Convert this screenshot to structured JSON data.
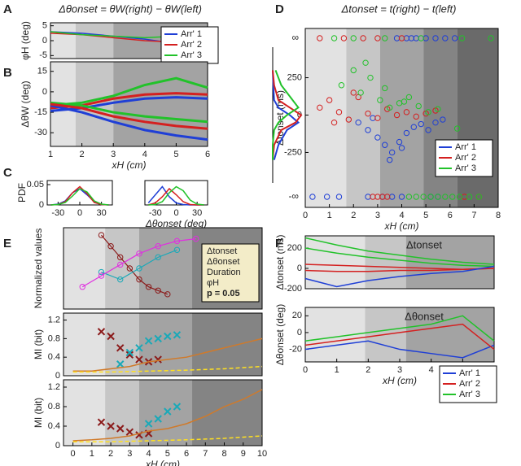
{
  "chart_data": [
    {
      "panel": "A",
      "type": "line",
      "title": "Δθonset = θW(right) − θW(left)",
      "title_color": "#1a9fb0",
      "ylabel": "φH (deg)",
      "xlim": [
        1,
        6
      ],
      "ylim": [
        -6,
        6
      ],
      "yticks": [
        -5,
        0,
        5
      ],
      "bands": [
        1,
        1.8,
        3,
        6
      ],
      "x": [
        1,
        2,
        3,
        4,
        5,
        6
      ],
      "series": [
        {
          "name": "Arr' 1",
          "color": "#1f3fd6",
          "values": [
            3,
            2.5,
            1.5,
            0.5,
            -1,
            -2
          ]
        },
        {
          "name": "Arr' 2",
          "color": "#d42020",
          "values": [
            2.5,
            2,
            1,
            0,
            -0.5,
            -1.5
          ]
        },
        {
          "name": "Arr' 3",
          "color": "#22c22a",
          "values": [
            3,
            2,
            1.5,
            1,
            1.5,
            2
          ]
        }
      ]
    },
    {
      "panel": "B",
      "type": "line",
      "ylabel": "ΔθW (deg)",
      "xlabel": "xH (cm)",
      "xlim": [
        1,
        6
      ],
      "ylim": [
        -40,
        22
      ],
      "yticks": [
        -30,
        -15,
        0,
        15
      ],
      "xticks": [
        1,
        2,
        3,
        4,
        5,
        6
      ],
      "bands": [
        1,
        1.8,
        3,
        6
      ],
      "x": [
        1,
        2,
        3,
        4,
        5,
        6
      ],
      "series": [
        {
          "color": "#22c22a",
          "values": [
            -10,
            -8,
            -3,
            5,
            10,
            3
          ]
        },
        {
          "color": "#d42020",
          "values": [
            -12,
            -10,
            -5,
            -2,
            -1,
            -2
          ]
        },
        {
          "color": "#1f3fd6",
          "values": [
            -14,
            -12,
            -8,
            -5,
            -4,
            -5
          ]
        },
        {
          "color": "#1f3fd6",
          "values": [
            -10,
            -15,
            -22,
            -28,
            -32,
            -35
          ]
        },
        {
          "color": "#22c22a",
          "values": [
            -8,
            -10,
            -15,
            -18,
            -20,
            -22
          ]
        },
        {
          "color": "#d42020",
          "values": [
            -9,
            -12,
            -18,
            -22,
            -25,
            -27
          ]
        }
      ]
    },
    {
      "panel": "C",
      "type": "line",
      "ylabel": "PDF",
      "xlim": [
        -45,
        45
      ],
      "ylim": [
        0,
        0.06
      ],
      "yticks": [
        0,
        0.05
      ],
      "xticks": [
        -30,
        0,
        30
      ],
      "x": [
        -40,
        -30,
        -20,
        -10,
        0,
        10,
        20,
        30,
        40
      ],
      "series": [
        {
          "color": "#1f3fd6",
          "values": [
            0,
            0.002,
            0.01,
            0.03,
            0.04,
            0.025,
            0.008,
            0.001,
            0
          ]
        },
        {
          "color": "#d42020",
          "values": [
            0,
            0.001,
            0.008,
            0.03,
            0.045,
            0.028,
            0.006,
            0.001,
            0
          ]
        },
        {
          "color": "#22c22a",
          "values": [
            0,
            0.001,
            0.006,
            0.022,
            0.04,
            0.032,
            0.01,
            0.002,
            0
          ]
        }
      ]
    },
    {
      "type": "line",
      "xlabel": "Δθonset (deg)",
      "xlim": [
        -45,
        45
      ],
      "ylim": [
        0,
        0.06
      ],
      "xticks": [
        -30,
        0,
        30
      ],
      "x": [
        -40,
        -30,
        -20,
        -10,
        0,
        10,
        20,
        30,
        40
      ],
      "series": [
        {
          "color": "#1f3fd6",
          "values": [
            0.005,
            0.025,
            0.045,
            0.02,
            0.005,
            0.001,
            0,
            0,
            0
          ]
        },
        {
          "color": "#d42020",
          "values": [
            0,
            0.005,
            0.02,
            0.04,
            0.025,
            0.008,
            0.001,
            0,
            0
          ]
        },
        {
          "color": "#22c22a",
          "values": [
            0,
            0.001,
            0.008,
            0.03,
            0.045,
            0.035,
            0.012,
            0.002,
            0
          ]
        }
      ]
    },
    {
      "panel": "D",
      "type": "scatter",
      "title": "Δtonset = t(right) − t(left)",
      "title_color": "#a01010",
      "ylabel": "Δtonset (ms)",
      "xlabel": "xH (cm)",
      "xlim": [
        0,
        8
      ],
      "ylim": [
        -400,
        400
      ],
      "yticks": [
        -250,
        0,
        250
      ],
      "xticks": [
        0,
        1,
        2,
        3,
        4,
        5,
        6,
        7,
        8
      ],
      "inf_labels": [
        "∞",
        "-∞"
      ],
      "bands": [
        0,
        1.7,
        3.1,
        4.9,
        6.3,
        8
      ],
      "series": [
        {
          "name": "Arr' 1",
          "color": "#1f3fd6",
          "x": [
            2.2,
            2.6,
            3.0,
            3.3,
            3.6,
            3.9,
            4.2,
            4.5,
            4.8,
            5.1,
            5.4,
            5.7,
            3.5,
            4.0,
            2.8
          ],
          "values": [
            -50,
            -100,
            -150,
            -200,
            -250,
            -180,
            -120,
            -80,
            -60,
            -100,
            -50,
            -30,
            -300,
            -220,
            -20
          ],
          "pos_inf_x": [
            3.8,
            4.2,
            4.6,
            5.0,
            5.4,
            5.8,
            6.2,
            4.4
          ],
          "neg_inf_x": [
            0.3,
            0.9,
            1.4,
            2.6,
            3.2,
            3.6,
            4.0,
            5.2,
            5.5
          ]
        },
        {
          "name": "Arr' 2",
          "color": "#d42020",
          "x": [
            0.6,
            1.0,
            1.4,
            1.8,
            2.2,
            2.6,
            3.0,
            3.4,
            3.8,
            4.2,
            4.6,
            5.0,
            5.4,
            2.0,
            1.2
          ],
          "values": [
            50,
            100,
            20,
            -30,
            120,
            10,
            -20,
            40,
            0,
            20,
            -10,
            10,
            30,
            150,
            -50
          ],
          "pos_inf_x": [
            0.6,
            1.6,
            2.4,
            3.0,
            4.0
          ],
          "neg_inf_x": [
            2.8,
            3.0,
            3.2,
            3.4,
            6.6,
            7.2
          ]
        },
        {
          "name": "Arr' 3",
          "color": "#22c22a",
          "x": [
            1.5,
            2.0,
            2.3,
            2.7,
            3.1,
            3.5,
            3.9,
            4.3,
            4.7,
            5.1,
            5.5,
            2.5,
            3.3,
            4.1,
            6.3
          ],
          "values": [
            200,
            300,
            150,
            250,
            100,
            50,
            80,
            120,
            60,
            20,
            40,
            350,
            180,
            90,
            -90
          ],
          "pos_inf_x": [
            1.2,
            2.0,
            3.3,
            4.8,
            6.5,
            7.7
          ],
          "neg_inf_x": [
            4.3,
            4.6,
            4.9,
            5.2,
            5.5,
            5.8,
            6.1,
            6.4,
            6.8,
            7.2
          ]
        }
      ]
    },
    {
      "type": "density",
      "ylim": [
        -400,
        400
      ],
      "xlim": [
        0,
        1
      ],
      "y": [
        -300,
        -200,
        -100,
        -50,
        0,
        50,
        100,
        200,
        300
      ],
      "series": [
        {
          "color": "#1f3fd6",
          "values": [
            0.05,
            0.2,
            0.5,
            0.9,
            0.6,
            0.2,
            0.05,
            0.02,
            0
          ]
        },
        {
          "color": "#d42020",
          "values": [
            0,
            0.05,
            0.3,
            0.8,
            1,
            0.6,
            0.2,
            0.05,
            0
          ]
        },
        {
          "color": "#22c22a",
          "values": [
            0,
            0,
            0.05,
            0.2,
            0.5,
            0.9,
            0.7,
            0.3,
            0.1
          ]
        }
      ]
    },
    {
      "panel": "E",
      "type": "scatter",
      "ylabel": "Normalized values",
      "xlim": [
        -0.5,
        10
      ],
      "ylim": [
        0,
        1.1
      ],
      "bands": [
        -0.5,
        1.7,
        3.5,
        6.3,
        10
      ],
      "series": [
        {
          "color": "#8b1a1a",
          "x": [
            1.5,
            2,
            2.5,
            3,
            3.5,
            4,
            4.5,
            5
          ],
          "values": [
            1,
            0.85,
            0.7,
            0.55,
            0.4,
            0.3,
            0.25,
            0.2
          ]
        },
        {
          "color": "#1aa9b8",
          "x": [
            1.5,
            2.5,
            3.5,
            4.5,
            5.5
          ],
          "values": [
            0.5,
            0.4,
            0.55,
            0.7,
            0.8
          ]
        },
        {
          "color": "#e030e0",
          "x": [
            0.5,
            1.5,
            2.5,
            3.5,
            4.5,
            5.5,
            6.5
          ],
          "values": [
            0.3,
            0.45,
            0.6,
            0.75,
            0.85,
            0.92,
            0.95
          ]
        }
      ],
      "legend": [
        {
          "name": "Δtonset",
          "color": "#8b1a1a"
        },
        {
          "name": "Δθonset",
          "color": "#1aa9b8"
        },
        {
          "name": "Duration",
          "color": "#e030e0"
        },
        {
          "name": "φH",
          "color": "#e08a20"
        },
        {
          "name": "p = 0.05",
          "color": "#ffe020"
        }
      ]
    },
    {
      "type": "cross",
      "ylabel": "MI (bit)",
      "xlim": [
        -0.5,
        10
      ],
      "ylim": [
        0,
        1.35
      ],
      "yticks": [
        0,
        0.4,
        0.8,
        1.2
      ],
      "bands": [
        -0.5,
        1.7,
        3.5,
        6.3,
        10
      ],
      "series": [
        {
          "color": "#8b1a1a",
          "x": [
            1.5,
            2,
            2.5,
            3,
            3.5,
            4,
            4.5
          ],
          "values": [
            0.95,
            0.85,
            0.6,
            0.45,
            0.35,
            0.3,
            0.35
          ]
        },
        {
          "color": "#1aa9b8",
          "x": [
            2.5,
            3,
            3.5,
            4,
            4.5,
            5,
            5.5
          ],
          "values": [
            0.25,
            0.5,
            0.6,
            0.75,
            0.8,
            0.85,
            0.88
          ]
        },
        {
          "color": "#d07a2a",
          "line": true,
          "x": [
            0,
            1,
            2,
            3,
            4,
            5,
            6,
            7,
            8,
            9,
            10
          ],
          "values": [
            0.1,
            0.1,
            0.15,
            0.2,
            0.3,
            0.35,
            0.4,
            0.5,
            0.6,
            0.7,
            0.8
          ]
        },
        {
          "color": "#ffe020",
          "line": true,
          "dash": true,
          "x": [
            0,
            2,
            4,
            6,
            8,
            10
          ],
          "values": [
            0.08,
            0.08,
            0.1,
            0.12,
            0.15,
            0.2
          ]
        }
      ]
    },
    {
      "type": "cross",
      "ylabel": "MI (bit)",
      "xlabel": "xH (cm)",
      "xlim": [
        -0.5,
        10
      ],
      "ylim": [
        0,
        1.35
      ],
      "yticks": [
        0,
        0.4,
        0.8,
        1.2
      ],
      "xticks": [
        0,
        1,
        2,
        3,
        4,
        5,
        6,
        7,
        8,
        9,
        10
      ],
      "bands": [
        -0.5,
        1.7,
        3.5,
        6.3,
        10
      ],
      "series": [
        {
          "color": "#8b1a1a",
          "x": [
            1.5,
            2,
            2.5,
            3,
            3.5,
            4
          ],
          "values": [
            0.48,
            0.4,
            0.35,
            0.28,
            0.22,
            0.25
          ]
        },
        {
          "color": "#1aa9b8",
          "x": [
            4,
            4.5,
            5,
            5.5
          ],
          "values": [
            0.45,
            0.55,
            0.7,
            0.8
          ]
        },
        {
          "color": "#d07a2a",
          "line": true,
          "x": [
            0,
            1,
            2,
            3,
            4,
            5,
            6,
            7,
            8,
            9,
            10
          ],
          "values": [
            0.1,
            0.12,
            0.15,
            0.2,
            0.3,
            0.35,
            0.45,
            0.6,
            0.8,
            0.95,
            1.15
          ]
        },
        {
          "color": "#ffe020",
          "line": true,
          "dash": true,
          "x": [
            0,
            2,
            4,
            6,
            8,
            10
          ],
          "values": [
            0.08,
            0.08,
            0.1,
            0.12,
            0.15,
            0.2
          ]
        }
      ]
    },
    {
      "panel": "F",
      "type": "line",
      "ylabel": "Δtonset (ms)",
      "annotation": "Δtonset",
      "annotation_color": "#a01010",
      "xlim": [
        0,
        6
      ],
      "ylim": [
        -200,
        320
      ],
      "yticks": [
        -200,
        0,
        200
      ],
      "bands": [
        0,
        1.9,
        3.2,
        6
      ],
      "x": [
        0,
        1,
        2,
        3,
        4,
        5,
        6
      ],
      "series": [
        {
          "color": "#22c22a",
          "values": [
            300,
            230,
            170,
            130,
            90,
            60,
            40
          ]
        },
        {
          "color": "#22c22a",
          "values": [
            200,
            150,
            110,
            80,
            50,
            30,
            20
          ]
        },
        {
          "color": "#d42020",
          "values": [
            40,
            30,
            20,
            10,
            0,
            -10,
            0
          ]
        },
        {
          "color": "#d42020",
          "values": [
            -20,
            -30,
            -30,
            -20,
            -20,
            -10,
            0
          ]
        },
        {
          "color": "#1f3fd6",
          "values": [
            -100,
            -180,
            -120,
            -80,
            -50,
            -30,
            20
          ]
        }
      ]
    },
    {
      "type": "line",
      "ylabel": "Δθonset (deg)",
      "annotation": "Δθonset",
      "annotation_color": "#1aa9b8",
      "xlabel": "xH (cm)",
      "xlim": [
        0,
        6
      ],
      "ylim": [
        -35,
        30
      ],
      "yticks": [
        -20,
        0,
        20
      ],
      "xticks": [
        0,
        1,
        2,
        3,
        4,
        5,
        6
      ],
      "bands": [
        0,
        1.9,
        3.2,
        6
      ],
      "x": [
        0,
        1,
        2,
        3,
        4,
        5,
        6
      ],
      "series": [
        {
          "name": "Arr' 1",
          "color": "#1f3fd6",
          "values": [
            -20,
            -15,
            -10,
            -20,
            -25,
            -30,
            -15
          ]
        },
        {
          "name": "Arr' 2",
          "color": "#d42020",
          "values": [
            -15,
            -10,
            -5,
            0,
            5,
            10,
            -20
          ]
        },
        {
          "name": "Arr' 3",
          "color": "#22c22a",
          "values": [
            -10,
            -5,
            0,
            5,
            10,
            20,
            -10
          ]
        }
      ]
    }
  ]
}
